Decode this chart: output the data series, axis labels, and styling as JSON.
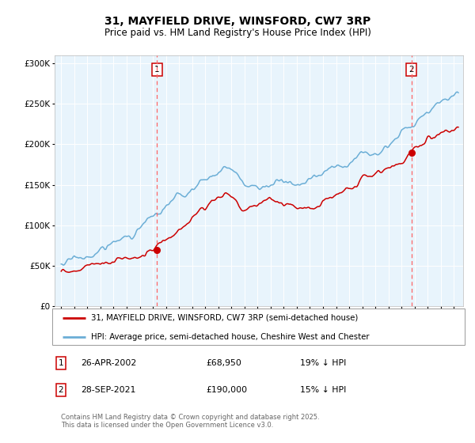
{
  "title": "31, MAYFIELD DRIVE, WINSFORD, CW7 3RP",
  "subtitle": "Price paid vs. HM Land Registry's House Price Index (HPI)",
  "legend_line1": "31, MAYFIELD DRIVE, WINSFORD, CW7 3RP (semi-detached house)",
  "legend_line2": "HPI: Average price, semi-detached house, Cheshire West and Chester",
  "annotation1_date": "26-APR-2002",
  "annotation1_price": "£68,950",
  "annotation1_hpi": "19% ↓ HPI",
  "annotation2_date": "28-SEP-2021",
  "annotation2_price": "£190,000",
  "annotation2_hpi": "15% ↓ HPI",
  "footer": "Contains HM Land Registry data © Crown copyright and database right 2025.\nThis data is licensed under the Open Government Licence v3.0.",
  "sale1_x": 2002.32,
  "sale1_y": 68950,
  "sale2_x": 2021.75,
  "sale2_y": 190000,
  "hpi_color": "#6BAED6",
  "price_color": "#CC0000",
  "vline_color": "#FF6666",
  "dot_color": "#CC0000",
  "bg_color": "#E8F4FC",
  "annotation_box_color": "#CC0000",
  "ylim": [
    0,
    310000
  ],
  "xlim_start": 1994.5,
  "xlim_end": 2025.7
}
